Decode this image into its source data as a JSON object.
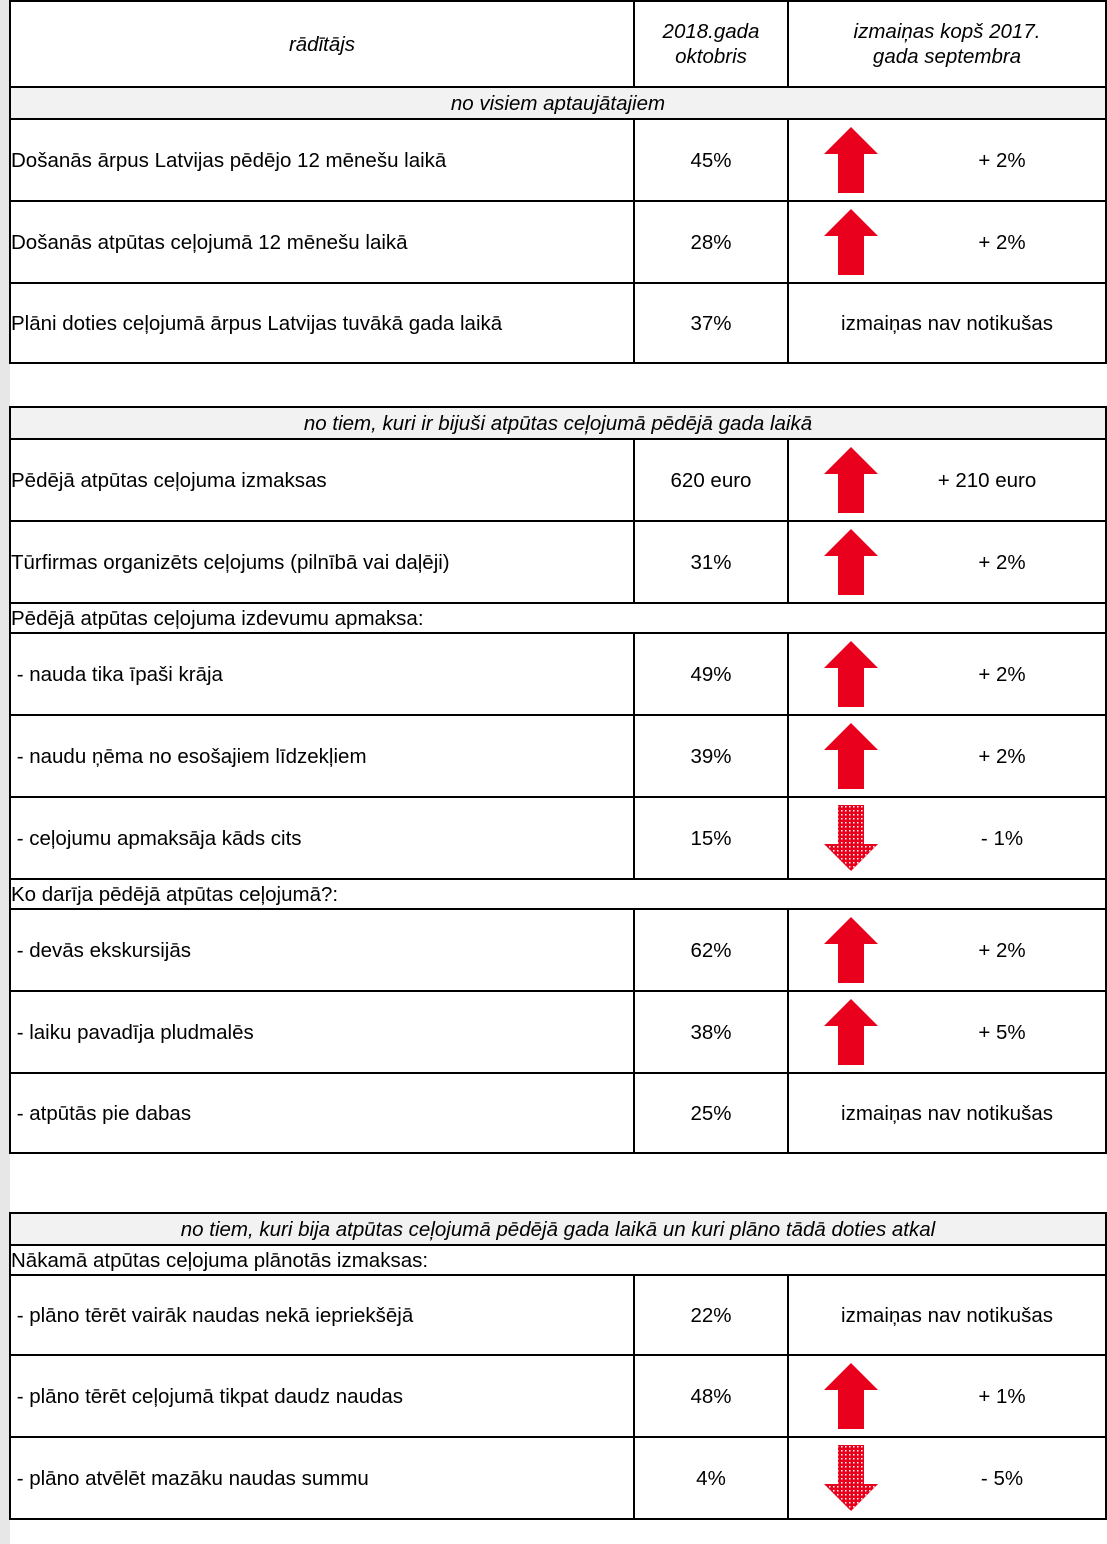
{
  "colors": {
    "up_arrow": "#e8001c",
    "down_arrow": "#e8001c",
    "section_bg": "#f2f2f2",
    "gutter": "#e7e7e7"
  },
  "header": {
    "col1": "rādītājs",
    "col2_line1": "2018.gada",
    "col2_line2": "oktobris",
    "col3_line1": "izmaiņas kopš 2017.",
    "col3_line2": "gada septembra"
  },
  "sections": [
    {
      "title": "no visiem aptaujātajiem",
      "rows": [
        {
          "label": "Došanās ārpus Latvijas pēdējo 12 mēnešu laikā",
          "value": "45%",
          "icon": "up-arrow-icon",
          "change": "+ 2%"
        },
        {
          "label": "Došanās atpūtas ceļojumā 12 mēnešu laikā",
          "value": "28%",
          "icon": "up-arrow-icon",
          "change": "+ 2%"
        },
        {
          "label": "Plāni doties ceļojumā ārpus Latvijas tuvākā gada laikā",
          "value": "37%",
          "icon": null,
          "change": "izmaiņas nav notikušas"
        }
      ]
    },
    {
      "title": "no tiem, kuri ir bijuši atpūtas ceļojumā pēdējā gada laikā",
      "rows": [
        {
          "label": "Pēdējā atpūtas ceļojuma izmaksas",
          "value": "620 euro",
          "icon": "up-arrow-icon",
          "change": "+ 210 euro"
        },
        {
          "label": "Tūrfirmas organizēts ceļojums (pilnībā vai daļēji)",
          "value": "31%",
          "icon": "up-arrow-icon",
          "change": "+ 2%"
        },
        {
          "subheading": "Pēdējā atpūtas ceļojuma izdevumu apmaksa:"
        },
        {
          "label": " - nauda tika īpaši krāja",
          "value": "49%",
          "icon": "up-arrow-icon",
          "change": "+ 2%"
        },
        {
          "label": " - naudu ņēma no esošajiem līdzekļiem",
          "value": "39%",
          "icon": "up-arrow-icon",
          "change": "+ 2%"
        },
        {
          "label": " - ceļojumu apmaksāja kāds cits",
          "value": "15%",
          "icon": "down-arrow-icon",
          "change": "- 1%"
        },
        {
          "subheading": "Ko darīja pēdējā atpūtas ceļojumā?:"
        },
        {
          "label": " - devās ekskursijās",
          "value": "62%",
          "icon": "up-arrow-icon",
          "change": "+ 2%"
        },
        {
          "label": " - laiku pavadīja pludmalēs",
          "value": "38%",
          "icon": "up-arrow-icon",
          "change": "+ 5%"
        },
        {
          "label": " - atpūtās pie dabas",
          "value": "25%",
          "icon": null,
          "change": "izmaiņas nav notikušas"
        }
      ]
    },
    {
      "title": "no tiem, kuri bija atpūtas ceļojumā pēdējā gada laikā un kuri plāno tādā doties atkal",
      "rows": [
        {
          "subheading": "Nākamā atpūtas ceļojuma plānotās izmaksas:"
        },
        {
          "label": " - plāno tērēt vairāk naudas nekā iepriekšējā",
          "value": "22%",
          "icon": null,
          "change": "izmaiņas nav notikušas"
        },
        {
          "label": " - plāno tērēt ceļojumā tikpat daudz naudas",
          "value": "48%",
          "icon": "up-arrow-icon",
          "change": "+ 1%"
        },
        {
          "label": " - plāno atvēlēt mazāku naudas summu",
          "value": "4%",
          "icon": "down-arrow-icon",
          "change": "- 5%"
        }
      ]
    }
  ]
}
